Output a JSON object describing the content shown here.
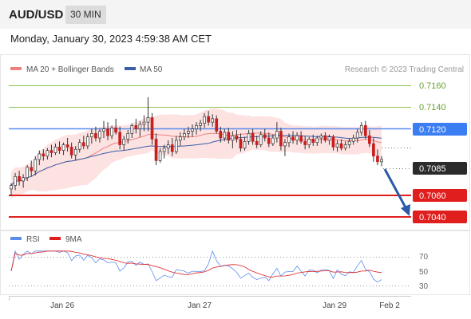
{
  "header": {
    "symbol": "AUD/USD",
    "interval": "30 MIN",
    "datetime": "Monday, January 30, 2023 4:59:38 AM CET"
  },
  "legend": {
    "ma20_label": "MA 20 + Bollinger Bands",
    "ma50_label": "MA 50",
    "copyright": "Research © 2023 Trading Central"
  },
  "rsi_legend": {
    "rsi_label": "RSI",
    "ma_label": "9MA"
  },
  "colors": {
    "up_candle": "#ffffff",
    "down_candle": "#c81e1e",
    "bollinger_fill": "#fde2e2",
    "ma20": "#f08080",
    "ma50": "#3a5ea8",
    "resistance": "#8cc152",
    "pivot": "#5b8def",
    "support": "#e01e1e",
    "arrow": "#2a5aa8",
    "rsi": "#5b8def",
    "rsi_ma": "#e01e1e"
  },
  "chart_data": {
    "type": "candlestick",
    "x_tick_labels": [
      "Jan 26",
      "Jan 27",
      "Jan 29",
      "Feb 2"
    ],
    "y_tick_labels": [
      "0.7160",
      "0.7140",
      "0.7120",
      "0.7085",
      "0.7060",
      "0.7040"
    ],
    "ylim": [
      0.7023,
      0.7178
    ],
    "levels": [
      {
        "value": 0.716,
        "label": "0.7160",
        "kind": "resistance"
      },
      {
        "value": 0.714,
        "label": "0.7140",
        "kind": "resistance"
      },
      {
        "value": 0.712,
        "label": "0.7120",
        "kind": "pivot"
      },
      {
        "value": 0.7085,
        "label": "0.7085",
        "kind": "last-price"
      },
      {
        "value": 0.706,
        "label": "0.7060",
        "kind": "support"
      },
      {
        "value": 0.704,
        "label": "0.7040",
        "kind": "support"
      }
    ],
    "forecast_arrow": {
      "from": 0.7085,
      "to": 0.704,
      "direction": "down"
    },
    "candles": [
      [
        0.7059,
        0.7064,
        0.7053,
        0.7062
      ],
      [
        0.7062,
        0.7073,
        0.7058,
        0.707
      ],
      [
        0.707,
        0.7075,
        0.7062,
        0.7066
      ],
      [
        0.7066,
        0.7072,
        0.706,
        0.7069
      ],
      [
        0.7069,
        0.708,
        0.7066,
        0.7078
      ],
      [
        0.7078,
        0.7084,
        0.707,
        0.7075
      ],
      [
        0.7075,
        0.7088,
        0.7071,
        0.7085
      ],
      [
        0.7085,
        0.7093,
        0.708,
        0.709
      ],
      [
        0.709,
        0.7094,
        0.7084,
        0.7088
      ],
      [
        0.7088,
        0.7095,
        0.7085,
        0.7093
      ],
      [
        0.7093,
        0.7098,
        0.7087,
        0.7091
      ],
      [
        0.7091,
        0.7099,
        0.7089,
        0.7096
      ],
      [
        0.7096,
        0.7101,
        0.709,
        0.7093
      ],
      [
        0.7093,
        0.71,
        0.7089,
        0.7098
      ],
      [
        0.7098,
        0.7104,
        0.7092,
        0.7096
      ],
      [
        0.7096,
        0.71,
        0.7086,
        0.7089
      ],
      [
        0.7089,
        0.7097,
        0.7084,
        0.7094
      ],
      [
        0.7094,
        0.7103,
        0.7091,
        0.71
      ],
      [
        0.71,
        0.7106,
        0.7094,
        0.7097
      ],
      [
        0.7097,
        0.7108,
        0.7094,
        0.7105
      ],
      [
        0.7105,
        0.7112,
        0.7099,
        0.7108
      ],
      [
        0.7108,
        0.7114,
        0.7101,
        0.7104
      ],
      [
        0.7104,
        0.7112,
        0.71,
        0.711
      ],
      [
        0.711,
        0.7119,
        0.7104,
        0.7112
      ],
      [
        0.7112,
        0.7118,
        0.7102,
        0.7106
      ],
      [
        0.7106,
        0.7115,
        0.7103,
        0.7113
      ],
      [
        0.7113,
        0.7121,
        0.7107,
        0.7109
      ],
      [
        0.7109,
        0.7114,
        0.7094,
        0.7098
      ],
      [
        0.7098,
        0.7106,
        0.7093,
        0.7103
      ],
      [
        0.7103,
        0.7111,
        0.7099,
        0.7108
      ],
      [
        0.7108,
        0.7117,
        0.7104,
        0.7115
      ],
      [
        0.7115,
        0.7121,
        0.7108,
        0.7112
      ],
      [
        0.7112,
        0.7119,
        0.7105,
        0.7116
      ],
      [
        0.7116,
        0.7124,
        0.711,
        0.7118
      ],
      [
        0.7118,
        0.714,
        0.711,
        0.7122
      ],
      [
        0.7122,
        0.7126,
        0.7098,
        0.7103
      ],
      [
        0.7103,
        0.7108,
        0.708,
        0.7084
      ],
      [
        0.7084,
        0.7095,
        0.7082,
        0.7092
      ],
      [
        0.7092,
        0.7098,
        0.7086,
        0.7095
      ],
      [
        0.7095,
        0.7102,
        0.709,
        0.7098
      ],
      [
        0.7098,
        0.7104,
        0.7088,
        0.7092
      ],
      [
        0.7092,
        0.7106,
        0.709,
        0.7102
      ],
      [
        0.7102,
        0.7109,
        0.7097,
        0.7105
      ],
      [
        0.7105,
        0.7112,
        0.7102,
        0.7108
      ],
      [
        0.7108,
        0.7114,
        0.7104,
        0.711
      ],
      [
        0.711,
        0.7116,
        0.7105,
        0.7112
      ],
      [
        0.7112,
        0.7118,
        0.7107,
        0.7115
      ],
      [
        0.7115,
        0.712,
        0.711,
        0.7117
      ],
      [
        0.7117,
        0.7126,
        0.7113,
        0.7123
      ],
      [
        0.7123,
        0.7128,
        0.7115,
        0.7118
      ],
      [
        0.7118,
        0.7125,
        0.7114,
        0.7121
      ],
      [
        0.7121,
        0.7124,
        0.7108,
        0.711
      ],
      [
        0.711,
        0.7114,
        0.71,
        0.7104
      ],
      [
        0.7104,
        0.7112,
        0.7101,
        0.7109
      ],
      [
        0.7109,
        0.7113,
        0.7099,
        0.7102
      ],
      [
        0.7102,
        0.711,
        0.7095,
        0.7106
      ],
      [
        0.7106,
        0.7111,
        0.71,
        0.7103
      ],
      [
        0.7103,
        0.7108,
        0.7092,
        0.7095
      ],
      [
        0.7095,
        0.7105,
        0.7093,
        0.7101
      ],
      [
        0.7101,
        0.7111,
        0.7098,
        0.7108
      ],
      [
        0.7108,
        0.7112,
        0.7098,
        0.7101
      ],
      [
        0.7101,
        0.7106,
        0.7095,
        0.7098
      ],
      [
        0.7098,
        0.711,
        0.7096,
        0.7107
      ],
      [
        0.7107,
        0.7112,
        0.7101,
        0.7104
      ],
      [
        0.7104,
        0.7109,
        0.7096,
        0.7099
      ],
      [
        0.7099,
        0.7107,
        0.7097,
        0.7104
      ],
      [
        0.7104,
        0.7118,
        0.71,
        0.711
      ],
      [
        0.711,
        0.7113,
        0.7093,
        0.7097
      ],
      [
        0.7097,
        0.7103,
        0.7088,
        0.71
      ],
      [
        0.71,
        0.7108,
        0.7096,
        0.7105
      ],
      [
        0.7105,
        0.711,
        0.7099,
        0.7102
      ],
      [
        0.7102,
        0.7109,
        0.7098,
        0.7106
      ],
      [
        0.7106,
        0.711,
        0.7099,
        0.7101
      ],
      [
        0.7101,
        0.7106,
        0.7094,
        0.7098
      ],
      [
        0.7098,
        0.7105,
        0.7095,
        0.7103
      ],
      [
        0.7103,
        0.7107,
        0.7097,
        0.71
      ],
      [
        0.71,
        0.7106,
        0.7097,
        0.7104
      ],
      [
        0.7104,
        0.7108,
        0.7099,
        0.7106
      ],
      [
        0.7106,
        0.7109,
        0.71,
        0.7102
      ],
      [
        0.7102,
        0.7107,
        0.7098,
        0.7105
      ],
      [
        0.7105,
        0.7107,
        0.7093,
        0.7096
      ],
      [
        0.7096,
        0.7102,
        0.7092,
        0.7099
      ],
      [
        0.7099,
        0.7103,
        0.7093,
        0.7095
      ],
      [
        0.7095,
        0.7101,
        0.7093,
        0.7098
      ],
      [
        0.7098,
        0.7104,
        0.7095,
        0.7101
      ],
      [
        0.7101,
        0.7107,
        0.7098,
        0.7104
      ],
      [
        0.7104,
        0.7112,
        0.71,
        0.7109
      ],
      [
        0.7109,
        0.7118,
        0.7106,
        0.7115
      ],
      [
        0.7115,
        0.7119,
        0.7103,
        0.7106
      ],
      [
        0.7106,
        0.7111,
        0.7096,
        0.7099
      ],
      [
        0.7099,
        0.7104,
        0.7083,
        0.7088
      ],
      [
        0.7088,
        0.7094,
        0.708,
        0.7083
      ],
      [
        0.7083,
        0.7088,
        0.7079,
        0.7085
      ]
    ]
  }
}
